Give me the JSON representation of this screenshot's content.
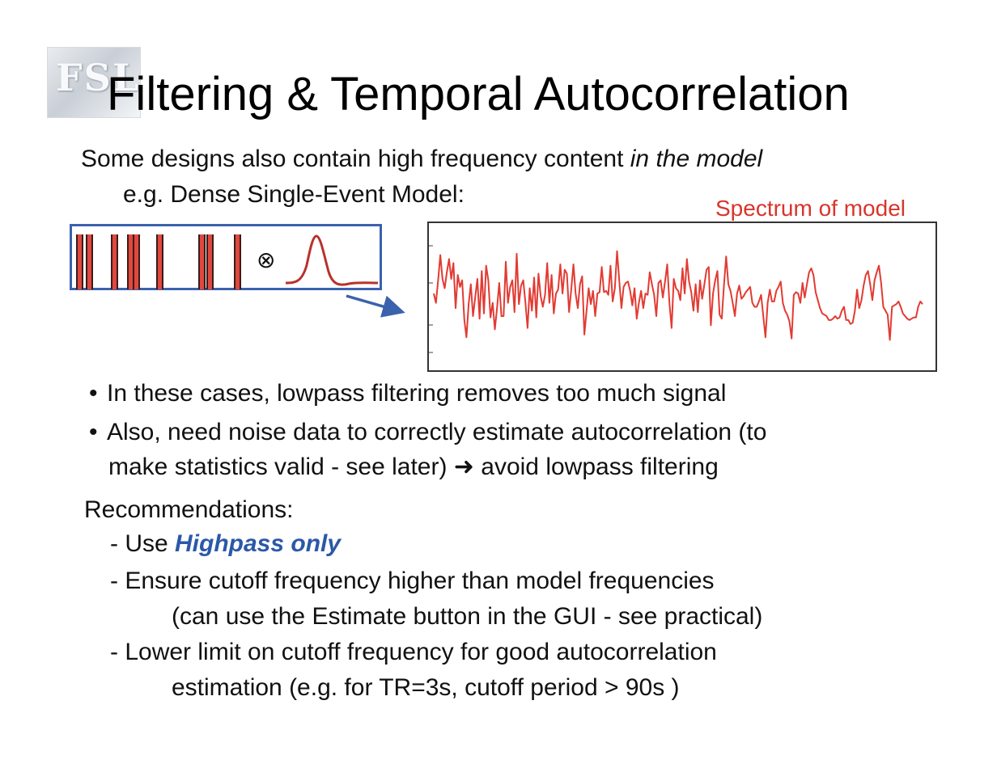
{
  "slide": {
    "logo_text": "FSL",
    "title": "Filtering & Temporal Autocorrelation",
    "intro": {
      "text": "Some designs also contain high frequency content ",
      "emphasis": "in the model"
    },
    "example": "e.g. Dense Single-Event Model:",
    "convolve_symbol": "⊗",
    "spectrum_label": "Spectrum of model",
    "bullets": [
      "In these cases, lowpass filtering removes too much signal",
      "Also, need noise data to correctly estimate autocorrelation (to",
      "make statistics valid - see later) ➜ avoid lowpass filtering"
    ],
    "bullet_symbol": "•",
    "recommendations_heading": "Recommendations:",
    "rec1_prefix": "- Use ",
    "rec1_highlight": "Highpass only",
    "rec2_line1": "- Ensure cutoff frequency higher than model frequencies",
    "rec2_line2": "(can use the Estimate button in the GUI - see practical)",
    "rec3_line1": "- Lower limit on cutoff frequency for good autocorrelation",
    "rec3_line2": "estimation   (e.g. for TR=3s, cutoff period > 90s )"
  },
  "colors": {
    "accent_blue": "#2b58a8",
    "box_blue": "#3a62ad",
    "spectrum_red": "#e23b33",
    "label_red": "#d9342b"
  },
  "chart_data": {
    "type": "line",
    "title": "",
    "xlabel": "",
    "ylabel": "",
    "grid": false,
    "legend": "none",
    "ylim": [
      0,
      1
    ],
    "y": [
      0.53,
      0.46,
      0.63,
      0.82,
      0.64,
      0.57,
      0.69,
      0.79,
      0.64,
      0.76,
      0.42,
      0.67,
      0.58,
      0.63,
      0.33,
      0.2,
      0.45,
      0.6,
      0.36,
      0.5,
      0.64,
      0.34,
      0.7,
      0.38,
      0.74,
      0.63,
      0.35,
      0.46,
      0.26,
      0.42,
      0.61,
      0.36,
      0.36,
      0.77,
      0.46,
      0.58,
      0.63,
      0.39,
      0.83,
      0.45,
      0.59,
      0.63,
      0.46,
      0.27,
      0.57,
      0.4,
      0.65,
      0.35,
      0.68,
      0.51,
      0.43,
      0.52,
      0.76,
      0.46,
      0.67,
      0.38,
      0.53,
      0.56,
      0.75,
      0.53,
      0.71,
      0.68,
      0.39,
      0.56,
      0.75,
      0.53,
      0.42,
      0.6,
      0.66,
      0.22,
      0.4,
      0.57,
      0.45,
      0.55,
      0.36,
      0.53,
      0.54,
      0.73,
      0.54,
      0.55,
      0.52,
      0.74,
      0.47,
      0.57,
      0.85,
      0.63,
      0.42,
      0.58,
      0.61,
      0.62,
      0.55,
      0.44,
      0.57,
      0.34,
      0.46,
      0.55,
      0.42,
      0.53,
      0.52,
      0.69,
      0.6,
      0.52,
      0.36,
      0.61,
      0.63,
      0.5,
      0.62,
      0.75,
      0.46,
      0.27,
      0.64,
      0.57,
      0.55,
      0.48,
      0.72,
      0.53,
      0.79,
      0.62,
      0.54,
      0.4,
      0.6,
      0.39,
      0.63,
      0.49,
      0.6,
      0.71,
      0.73,
      0.29,
      0.53,
      0.63,
      0.7,
      0.37,
      0.34,
      0.59,
      0.81,
      0.6,
      0.55,
      0.46,
      0.36,
      0.53,
      0.59,
      0.49,
      0.51,
      0.54,
      0.56,
      0.58,
      0.46,
      0.43,
      0.43,
      0.47,
      0.52,
      0.36,
      0.2,
      0.46,
      0.56,
      0.47,
      0.47,
      0.55,
      0.58,
      0.62,
      0.46,
      0.4,
      0.37,
      0.32,
      0.19,
      0.52,
      0.54,
      0.53,
      0.46,
      0.61,
      0.5,
      0.6,
      0.69,
      0.72,
      0.67,
      0.54,
      0.48,
      0.42,
      0.38,
      0.37,
      0.36,
      0.33,
      0.33,
      0.34,
      0.36,
      0.34,
      0.35,
      0.4,
      0.43,
      0.33,
      0.33,
      0.3,
      0.31,
      0.4,
      0.56,
      0.42,
      0.48,
      0.59,
      0.67,
      0.7,
      0.6,
      0.48,
      0.63,
      0.69,
      0.74,
      0.61,
      0.43,
      0.4,
      0.37,
      0.18,
      0.43,
      0.44,
      0.45,
      0.47,
      0.43,
      0.38,
      0.36,
      0.34,
      0.33,
      0.34,
      0.35,
      0.35,
      0.43,
      0.47,
      0.45
    ]
  }
}
